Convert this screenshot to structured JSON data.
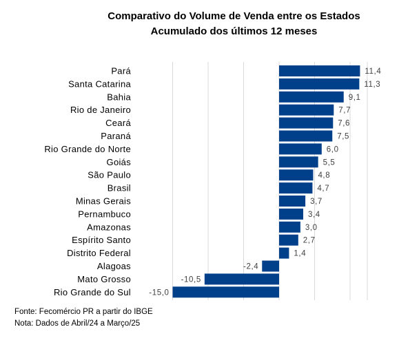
{
  "title": "Comparativo do Volume de Venda entre os Estados",
  "subtitle": "Acumulado dos últimos 12 meses",
  "source_note": "Fonte: Fecomércio PR a partir do IBGE",
  "period_note": "Nota: Dados de Abril/24 a Março/25",
  "bar_color": "#003f8a",
  "chart_data": {
    "type": "bar",
    "orientation": "horizontal",
    "title": "Comparativo do Volume de Venda entre os Estados",
    "subtitle": "Acumulado dos últimos 12 meses",
    "categories": [
      "Pará",
      "Santa Catarina",
      "Bahia",
      "Rio de Janeiro",
      "Ceará",
      "Paraná",
      "Rio Grande do Norte",
      "Goiás",
      "São Paulo",
      "Brasil",
      "Minas Gerais",
      "Pernambuco",
      "Amazonas",
      "Espírito Santo",
      "Distrito Federal",
      "Alagoas",
      "Mato Grosso",
      "Rio Grande do Sul"
    ],
    "values": [
      11.4,
      11.3,
      9.1,
      7.7,
      7.6,
      7.5,
      6.0,
      5.5,
      4.8,
      4.7,
      3.7,
      3.4,
      3.0,
      2.7,
      1.4,
      -2.4,
      -10.5,
      -15.0
    ],
    "value_labels": [
      "11,4",
      "11,3",
      "9,1",
      "7,7",
      "7,6",
      "7,5",
      "6,0",
      "5,5",
      "4,8",
      "4,7",
      "3,7",
      "3,4",
      "3,0",
      "2,7",
      "1,4",
      "-2,4",
      "-10,5",
      "-15,0"
    ],
    "xlim": [
      -15,
      12.5
    ],
    "grid": true,
    "legend": "none"
  }
}
